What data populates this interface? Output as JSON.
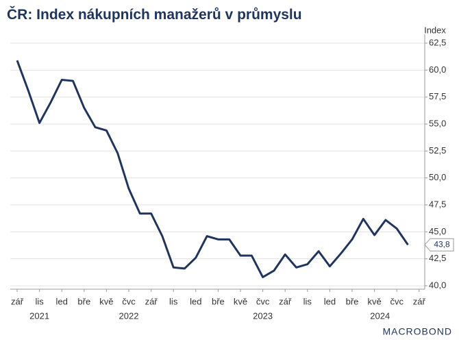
{
  "chart_data": {
    "type": "line",
    "title": "ČR: Index nákupních manažerů v průmyslu",
    "y_axis_label": "Index",
    "categories": [
      "zář",
      null,
      "lis",
      null,
      "led",
      null,
      "bře",
      null,
      "kvě",
      null,
      "čvc",
      null,
      "zář",
      null,
      "lis",
      null,
      "led",
      null,
      "bře",
      null,
      "kvě",
      null,
      "čvc",
      null,
      "zář",
      null,
      "lis",
      null,
      "led",
      null,
      "bře",
      null,
      "kvě",
      null,
      "čvc",
      null,
      "zář"
    ],
    "years": [
      {
        "label": "2021",
        "from": 0,
        "to": 3
      },
      {
        "label": "2022",
        "from": 4,
        "to": 15
      },
      {
        "label": "2023",
        "from": 16,
        "to": 27
      },
      {
        "label": "2024",
        "from": 28,
        "to": 36
      }
    ],
    "series": [
      {
        "name": "Index",
        "color": "#1f3560",
        "values": [
          60.9,
          58.1,
          55.1,
          57.0,
          59.1,
          59.0,
          56.5,
          54.7,
          54.4,
          52.3,
          49.0,
          46.7,
          46.7,
          44.6,
          41.7,
          41.6,
          42.6,
          44.6,
          44.3,
          44.3,
          42.8,
          42.8,
          40.8,
          41.4,
          42.9,
          41.7,
          42.0,
          43.2,
          41.8,
          43.0,
          44.3,
          46.2,
          44.7,
          46.1,
          45.3,
          43.8,
          null
        ],
        "last_value_label": "43,8"
      }
    ],
    "ylim": [
      40,
      62.5
    ],
    "yticks": [
      {
        "value": 40,
        "label": "40,0"
      },
      {
        "value": 42.5,
        "label": "42,5"
      },
      {
        "value": 45,
        "label": "45,0"
      },
      {
        "value": 47.5,
        "label": "47,5"
      },
      {
        "value": 50,
        "label": "50,0"
      },
      {
        "value": 52.5,
        "label": "52,5"
      },
      {
        "value": 55,
        "label": "55,0"
      },
      {
        "value": 57.5,
        "label": "57,5"
      },
      {
        "value": 60,
        "label": "60,0"
      },
      {
        "value": 62.5,
        "label": "62,5"
      }
    ],
    "grid": true,
    "source": "MACROBOND"
  }
}
